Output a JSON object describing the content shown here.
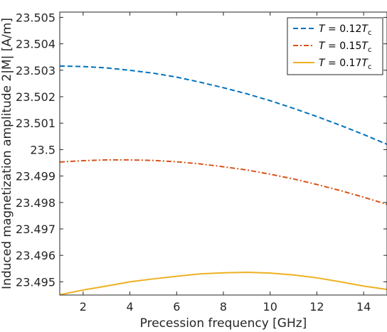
{
  "chart_data": {
    "type": "line",
    "xlabel": "Precession frequency [GHz]",
    "ylabel": "Induced magnetization amplitude  2|M| [A/m]",
    "xlim": [
      1,
      15
    ],
    "ylim": [
      23.4945,
      23.5052
    ],
    "xticks": [
      2,
      4,
      6,
      8,
      10,
      12,
      14
    ],
    "xtick_labels": [
      "2",
      "4",
      "6",
      "8",
      "10",
      "12",
      "14"
    ],
    "yticks": [
      23.495,
      23.496,
      23.497,
      23.498,
      23.499,
      23.5,
      23.501,
      23.502,
      23.503,
      23.504,
      23.505
    ],
    "ytick_labels": [
      "23.495",
      "23.496",
      "23.497",
      "23.498",
      "23.499",
      "23.5",
      "23.501",
      "23.502",
      "23.503",
      "23.504",
      "23.505"
    ],
    "grid": false,
    "legend_position": "top-right",
    "series": [
      {
        "name": "T = 0.12Tc",
        "legend": {
          "var": "T",
          "eq": " = 0.12",
          "sym": "T",
          "sub": "c"
        },
        "color": "#0072BD",
        "style": "dashed",
        "x": [
          1,
          2,
          3,
          4,
          5,
          6,
          7,
          8,
          9,
          10,
          11,
          12,
          13,
          14,
          15
        ],
        "y": [
          23.50316,
          23.50314,
          23.50309,
          23.503,
          23.50289,
          23.50274,
          23.50255,
          23.50234,
          23.50211,
          23.50185,
          23.50156,
          23.50125,
          23.50092,
          23.50057,
          23.5002
        ]
      },
      {
        "name": "T = 0.15Tc",
        "legend": {
          "var": "T",
          "eq": " = 0.15",
          "sym": "T",
          "sub": "c"
        },
        "color": "#D95319",
        "style": "dashdot",
        "x": [
          1,
          2,
          3,
          4,
          5,
          6,
          7,
          8,
          9,
          10,
          11,
          12,
          13,
          14,
          15
        ],
        "y": [
          23.49953,
          23.49958,
          23.49961,
          23.49961,
          23.49959,
          23.49954,
          23.49946,
          23.49935,
          23.49923,
          23.49907,
          23.49889,
          23.49868,
          23.49845,
          23.4982,
          23.49793
        ]
      },
      {
        "name": "T = 0.17Tc",
        "legend": {
          "var": "T",
          "eq": " = 0.17",
          "sym": "T",
          "sub": "c"
        },
        "color": "#EDB120",
        "style": "solid",
        "x": [
          1,
          2,
          3,
          4,
          5,
          6,
          7,
          8,
          9,
          10,
          11,
          12,
          13,
          14,
          15
        ],
        "y": [
          23.49451,
          23.49469,
          23.49484,
          23.495,
          23.49511,
          23.49521,
          23.4953,
          23.49534,
          23.49536,
          23.49533,
          23.49526,
          23.49515,
          23.495,
          23.49484,
          23.49471
        ]
      }
    ]
  }
}
